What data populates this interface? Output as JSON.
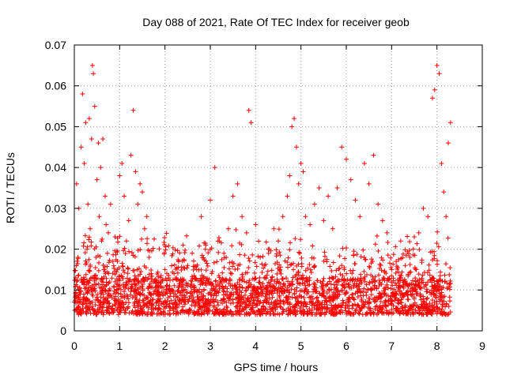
{
  "chart_data": {
    "type": "scatter",
    "title": "Day 088 of 2021, Rate Of TEC Index for receiver geob",
    "xlabel": "GPS time / hours",
    "ylabel": "ROTI / TECUs",
    "xlim": [
      0,
      9
    ],
    "ylim": [
      0,
      0.07
    ],
    "x_ticks": [
      0,
      1,
      2,
      3,
      4,
      5,
      6,
      7,
      8,
      9
    ],
    "y_ticks": [
      0,
      0.01,
      0.02,
      0.03,
      0.04,
      0.05,
      0.06,
      0.07
    ],
    "x_tick_labels": [
      "0",
      "1",
      "2",
      "3",
      "4",
      "5",
      "6",
      "7",
      "8",
      "9"
    ],
    "y_tick_labels": [
      "0",
      "0.01",
      "0.02",
      "0.03",
      "0.04",
      "0.05",
      "0.06",
      "0.07"
    ],
    "grid": true,
    "marker": "+",
    "series": [
      {
        "name": "ROTI",
        "color": "#ff0000",
        "x": [
          0.02,
          0.05,
          0.08,
          0.1,
          0.13,
          0.15,
          0.18,
          0.2,
          0.22,
          0.25,
          0.28,
          0.3,
          0.33,
          0.35,
          0.38,
          0.4,
          0.42,
          0.45,
          0.48,
          0.5,
          0.53,
          0.55,
          0.58,
          0.6,
          0.63,
          0.65,
          0.68,
          0.7,
          0.73,
          0.75,
          0.78,
          0.8,
          0.85,
          0.9,
          0.95,
          1.0,
          1.05,
          1.1,
          1.15,
          1.2,
          1.25,
          1.3,
          1.35,
          1.4,
          1.45,
          1.5,
          1.55,
          1.6,
          1.65,
          1.7,
          1.75,
          1.8,
          1.9,
          2.0,
          2.1,
          2.2,
          2.3,
          2.4,
          2.5,
          2.6,
          2.7,
          2.8,
          2.9,
          3.0,
          3.1,
          3.2,
          3.3,
          3.4,
          3.5,
          3.6,
          3.7,
          3.8,
          3.85,
          3.9,
          4.0,
          4.1,
          4.2,
          4.3,
          4.4,
          4.5,
          4.6,
          4.7,
          4.75,
          4.8,
          4.85,
          4.9,
          4.95,
          5.0,
          5.05,
          5.1,
          5.2,
          5.3,
          5.4,
          5.5,
          5.6,
          5.7,
          5.8,
          5.9,
          6.0,
          6.1,
          6.2,
          6.3,
          6.4,
          6.5,
          6.6,
          6.7,
          6.8,
          6.9,
          7.0,
          7.1,
          7.2,
          7.3,
          7.4,
          7.5,
          7.6,
          7.7,
          7.8,
          7.9,
          7.95,
          8.0,
          8.05,
          8.1,
          8.15,
          8.2,
          8.25,
          8.3
        ],
        "y": [
          0.0075,
          0.036,
          0.018,
          0.03,
          0.009,
          0.045,
          0.058,
          0.012,
          0.041,
          0.051,
          0.02,
          0.031,
          0.052,
          0.025,
          0.047,
          0.065,
          0.063,
          0.055,
          0.018,
          0.037,
          0.046,
          0.028,
          0.04,
          0.022,
          0.047,
          0.015,
          0.033,
          0.026,
          0.019,
          0.024,
          0.012,
          0.031,
          0.017,
          0.023,
          0.015,
          0.038,
          0.041,
          0.033,
          0.022,
          0.027,
          0.043,
          0.054,
          0.039,
          0.031,
          0.036,
          0.034,
          0.025,
          0.028,
          0.018,
          0.014,
          0.012,
          0.009,
          0.013,
          0.015,
          0.011,
          0.014,
          0.017,
          0.021,
          0.016,
          0.019,
          0.015,
          0.028,
          0.021,
          0.032,
          0.04,
          0.022,
          0.019,
          0.025,
          0.033,
          0.036,
          0.028,
          0.024,
          0.054,
          0.051,
          0.026,
          0.018,
          0.016,
          0.02,
          0.025,
          0.022,
          0.028,
          0.033,
          0.038,
          0.05,
          0.052,
          0.045,
          0.036,
          0.041,
          0.039,
          0.028,
          0.026,
          0.031,
          0.035,
          0.027,
          0.033,
          0.025,
          0.035,
          0.045,
          0.042,
          0.037,
          0.032,
          0.028,
          0.041,
          0.036,
          0.043,
          0.031,
          0.027,
          0.024,
          0.015,
          0.017,
          0.013,
          0.016,
          0.018,
          0.023,
          0.024,
          0.03,
          0.028,
          0.057,
          0.059,
          0.065,
          0.063,
          0.041,
          0.034,
          0.028,
          0.046,
          0.051
        ]
      }
    ],
    "baseline_band": {
      "y_min": 0.004,
      "y_max": 0.013,
      "x_start": 0.0,
      "x_end": 8.3
    }
  }
}
